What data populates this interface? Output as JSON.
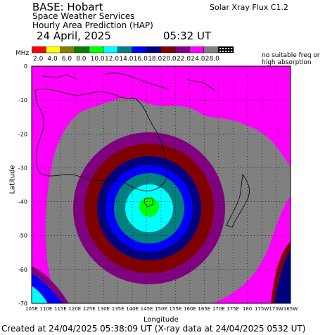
{
  "header": {
    "base": "BASE: Hobart",
    "service": "Space Weather Services",
    "product": "Hourly Area Prediction (HAP)",
    "date": "24 April, 2025",
    "time": "05:32 UT",
    "flux": "Solar Xray Flux C1.2"
  },
  "legend": {
    "unit": "MHz",
    "no_suitable": "no suitable freq or high absorption",
    "steps": [
      {
        "label": "2.0",
        "color": "#ff0000"
      },
      {
        "label": "4.0",
        "color": "#ffff00"
      },
      {
        "label": "6.0",
        "color": "#808000"
      },
      {
        "label": "8.0",
        "color": "#008000"
      },
      {
        "label": "10.0",
        "color": "#00ff00"
      },
      {
        "label": "12.0",
        "color": "#00ffff"
      },
      {
        "label": "14.0",
        "color": "#008080"
      },
      {
        "label": "16.0",
        "color": "#0000ff"
      },
      {
        "label": "18.0",
        "color": "#000080"
      },
      {
        "label": "20.0",
        "color": "#800000"
      },
      {
        "label": "22.0",
        "color": "#800080"
      },
      {
        "label": "24.0",
        "color": "#ff00ff"
      },
      {
        "label": "28.0",
        "color": "#808080"
      }
    ]
  },
  "axes": {
    "x_title": "Longitude",
    "y_title": "Latitude",
    "x_ticks": [
      "105E",
      "110E",
      "115E",
      "120E",
      "125E",
      "130E",
      "135E",
      "140E",
      "145E",
      "150E",
      "155E",
      "160E",
      "165E",
      "170E",
      "175E",
      "180",
      "175W",
      "170W",
      "165W"
    ],
    "y_ticks": [
      "0",
      "-10",
      "-20",
      "-30",
      "-40",
      "-50",
      "-60",
      "-70"
    ]
  },
  "map": {
    "center": {
      "lon": 147.3,
      "lat": -42.9
    },
    "background_color": "#808080"
  },
  "footer": "Created at 24/04/2025 05:38:09 UT (X-ray data at 24/04/2025 0532 UT)"
}
